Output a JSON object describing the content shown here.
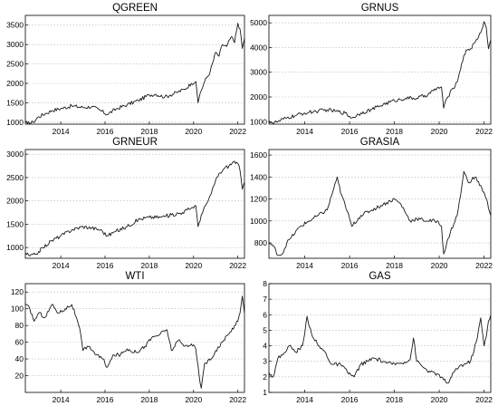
{
  "chart_data": [
    {
      "type": "line",
      "title": "QGREEN",
      "grid": "horizontal dotted",
      "ylim": [
        950,
        3750
      ],
      "xlim": [
        2012.4,
        2022.3
      ],
      "xticks": [
        2014,
        2016,
        2018,
        2020,
        2022
      ],
      "yticks": [
        1000,
        1500,
        2000,
        2500,
        3000,
        3500
      ],
      "x": [
        2012.4,
        2012.5,
        2012.75,
        2013.0,
        2013.3,
        2013.6,
        2014.0,
        2014.5,
        2015.0,
        2015.4,
        2015.8,
        2016.1,
        2016.5,
        2017.0,
        2017.5,
        2018.0,
        2018.3,
        2018.7,
        2018.95,
        2019.3,
        2019.6,
        2019.9,
        2020.1,
        2020.2,
        2020.3,
        2020.5,
        2020.75,
        2021.0,
        2021.15,
        2021.3,
        2021.5,
        2021.7,
        2021.85,
        2022.0,
        2022.1,
        2022.2,
        2022.3
      ],
      "series": [
        {
          "name": "",
          "values": [
            1010,
            960,
            1000,
            1140,
            1220,
            1300,
            1350,
            1420,
            1380,
            1400,
            1300,
            1200,
            1340,
            1450,
            1560,
            1700,
            1720,
            1650,
            1700,
            1780,
            1850,
            2000,
            2050,
            1500,
            1750,
            2050,
            2300,
            2800,
            2700,
            3000,
            2950,
            3200,
            3050,
            3550,
            3400,
            2900,
            3150
          ]
        }
      ]
    },
    {
      "type": "line",
      "title": "GRNUS",
      "grid": "horizontal dotted",
      "ylim": [
        900,
        5300
      ],
      "xlim": [
        2012.4,
        2022.3
      ],
      "xticks": [
        2014,
        2016,
        2018,
        2020,
        2022
      ],
      "yticks": [
        1000,
        2000,
        3000,
        4000,
        5000
      ],
      "x": [
        2012.4,
        2012.55,
        2012.8,
        2013.2,
        2013.6,
        2014.0,
        2014.5,
        2015.0,
        2015.4,
        2015.8,
        2016.1,
        2016.5,
        2017.0,
        2017.5,
        2018.0,
        2018.5,
        2019.0,
        2019.5,
        2019.9,
        2020.1,
        2020.2,
        2020.35,
        2020.6,
        2020.8,
        2021.0,
        2021.2,
        2021.4,
        2021.6,
        2021.85,
        2022.0,
        2022.1,
        2022.2,
        2022.3
      ],
      "series": [
        {
          "name": "",
          "values": [
            1050,
            950,
            1000,
            1150,
            1250,
            1350,
            1420,
            1480,
            1420,
            1350,
            1150,
            1350,
            1500,
            1700,
            1850,
            1950,
            1950,
            2100,
            2350,
            2400,
            1550,
            1950,
            2350,
            2600,
            3350,
            3900,
            3950,
            4200,
            4600,
            5050,
            4800,
            3950,
            4300
          ]
        }
      ]
    },
    {
      "type": "line",
      "title": "GRNEUR",
      "grid": "horizontal dotted",
      "ylim": [
        770,
        3100
      ],
      "xlim": [
        2012.4,
        2022.3
      ],
      "xticks": [
        2014,
        2016,
        2018,
        2020,
        2022
      ],
      "yticks": [
        1000,
        1500,
        2000,
        2500,
        3000
      ],
      "x": [
        2012.4,
        2012.6,
        2012.85,
        2013.2,
        2013.6,
        2014.0,
        2014.5,
        2015.0,
        2015.4,
        2015.8,
        2016.1,
        2016.5,
        2017.0,
        2017.5,
        2018.0,
        2018.5,
        2019.0,
        2019.5,
        2019.9,
        2020.1,
        2020.2,
        2020.35,
        2020.6,
        2020.8,
        2021.0,
        2021.2,
        2021.4,
        2021.6,
        2021.85,
        2022.0,
        2022.1,
        2022.2,
        2022.3
      ],
      "series": [
        {
          "name": "",
          "values": [
            880,
            820,
            850,
            1000,
            1150,
            1250,
            1380,
            1450,
            1420,
            1380,
            1250,
            1350,
            1450,
            1600,
            1650,
            1650,
            1700,
            1750,
            1850,
            1900,
            1450,
            1700,
            1950,
            2150,
            2450,
            2600,
            2700,
            2750,
            2850,
            2800,
            2650,
            2250,
            2400
          ]
        }
      ]
    },
    {
      "type": "line",
      "title": "GRASIA",
      "grid": "horizontal dotted",
      "ylim": [
        660,
        1650
      ],
      "xlim": [
        2012.4,
        2022.3
      ],
      "xticks": [
        2014,
        2016,
        2018,
        2020,
        2022
      ],
      "yticks": [
        800,
        1000,
        1200,
        1400,
        1600
      ],
      "x": [
        2012.4,
        2012.6,
        2012.8,
        2013.0,
        2013.2,
        2013.4,
        2013.8,
        2014.2,
        2014.6,
        2015.0,
        2015.3,
        2015.45,
        2015.6,
        2015.8,
        2016.1,
        2016.5,
        2017.0,
        2017.5,
        2018.0,
        2018.3,
        2018.7,
        2019.0,
        2019.5,
        2019.9,
        2020.1,
        2020.2,
        2020.5,
        2020.8,
        2021.0,
        2021.1,
        2021.3,
        2021.6,
        2021.9,
        2022.1,
        2022.3
      ],
      "series": [
        {
          "name": "",
          "values": [
            800,
            770,
            690,
            700,
            800,
            850,
            950,
            1000,
            1050,
            1100,
            1300,
            1400,
            1250,
            1150,
            950,
            1050,
            1100,
            1150,
            1200,
            1150,
            1000,
            1020,
            1000,
            1000,
            950,
            700,
            900,
            1050,
            1300,
            1450,
            1350,
            1400,
            1300,
            1200,
            1050
          ]
        }
      ]
    },
    {
      "type": "line",
      "title": "WTI",
      "grid": "horizontal dotted",
      "ylim": [
        0,
        130
      ],
      "xlim": [
        2012.4,
        2022.3
      ],
      "xticks": [
        2014,
        2016,
        2018,
        2020,
        2022
      ],
      "yticks": [
        20,
        40,
        60,
        80,
        100,
        120
      ],
      "x": [
        2012.4,
        2012.6,
        2012.8,
        2013.0,
        2013.3,
        2013.6,
        2013.9,
        2014.2,
        2014.5,
        2014.7,
        2014.9,
        2015.0,
        2015.3,
        2015.6,
        2015.9,
        2016.1,
        2016.4,
        2016.7,
        2017.0,
        2017.4,
        2017.8,
        2018.1,
        2018.5,
        2018.8,
        2019.0,
        2019.3,
        2019.6,
        2019.9,
        2020.1,
        2020.25,
        2020.35,
        2020.5,
        2020.8,
        2021.0,
        2021.3,
        2021.6,
        2021.85,
        2022.0,
        2022.1,
        2022.2,
        2022.3
      ],
      "series": [
        {
          "name": "",
          "values": [
            105,
            100,
            85,
            95,
            90,
            105,
            95,
            100,
            105,
            90,
            70,
            50,
            55,
            45,
            40,
            30,
            45,
            45,
            52,
            48,
            55,
            65,
            70,
            75,
            50,
            62,
            55,
            58,
            52,
            20,
            5,
            35,
            40,
            50,
            60,
            70,
            80,
            85,
            95,
            115,
            95
          ]
        }
      ]
    },
    {
      "type": "line",
      "title": "GAS",
      "grid": "horizontal dotted",
      "ylim": [
        1,
        8
      ],
      "xlim": [
        2012.4,
        2022.3
      ],
      "xticks": [
        2014,
        2016,
        2018,
        2020,
        2022
      ],
      "yticks": [
        1,
        2,
        3,
        4,
        5,
        6,
        7,
        8
      ],
      "x": [
        2012.4,
        2012.6,
        2012.8,
        2013.0,
        2013.3,
        2013.6,
        2013.9,
        2014.0,
        2014.1,
        2014.3,
        2014.6,
        2014.9,
        2015.2,
        2015.6,
        2015.9,
        2016.2,
        2016.5,
        2016.8,
        2017.1,
        2017.5,
        2017.9,
        2018.3,
        2018.7,
        2018.85,
        2019.0,
        2019.3,
        2019.6,
        2019.9,
        2020.2,
        2020.4,
        2020.7,
        2020.9,
        2021.1,
        2021.4,
        2021.7,
        2021.85,
        2022.0,
        2022.1,
        2022.2,
        2022.3
      ],
      "series": [
        {
          "name": "",
          "values": [
            2.3,
            2.0,
            3.2,
            3.4,
            4.0,
            3.6,
            4.0,
            4.8,
            5.9,
            4.8,
            4.0,
            3.6,
            2.8,
            2.8,
            2.3,
            2.0,
            2.8,
            3.0,
            3.2,
            3.0,
            2.8,
            2.9,
            3.1,
            4.5,
            3.0,
            2.6,
            2.3,
            2.2,
            1.8,
            1.6,
            2.4,
            2.7,
            2.8,
            3.0,
            4.5,
            5.8,
            4.0,
            4.6,
            5.6,
            6.0
          ]
        }
      ]
    }
  ]
}
